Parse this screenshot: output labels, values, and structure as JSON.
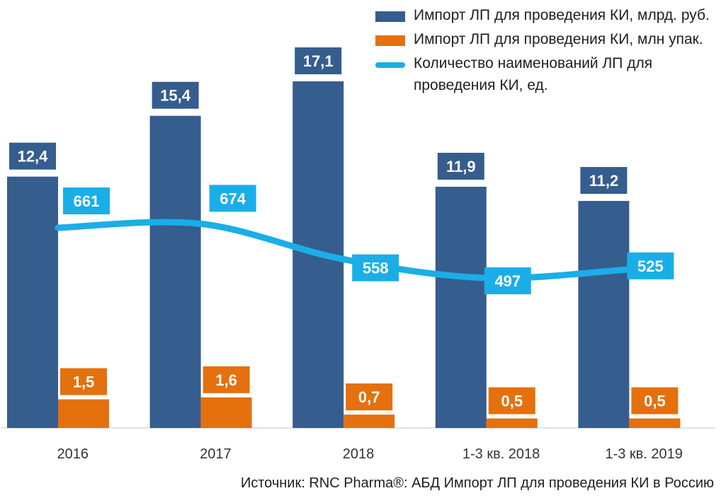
{
  "chart_data": {
    "type": "bar",
    "categories": [
      "2016",
      "2017",
      "2018",
      "1-3 кв. 2018",
      "1-3 кв. 2019"
    ],
    "series": [
      {
        "name": "Импорт ЛП для проведения КИ, млрд. руб.",
        "type": "bar",
        "color": "#355d8e",
        "values": [
          12.4,
          15.4,
          17.1,
          11.9,
          11.2
        ],
        "labels": [
          "12,4",
          "15,4",
          "17,1",
          "11,9",
          "11,2"
        ]
      },
      {
        "name": "Импорт ЛП для проведения КИ, млн упак.",
        "type": "bar",
        "color": "#e5700e",
        "values": [
          1.5,
          1.6,
          0.7,
          0.5,
          0.5
        ],
        "labels": [
          "1,5",
          "1,6",
          "0,7",
          "0,5",
          "0,5"
        ]
      },
      {
        "name": "Количество наименований ЛП для проведения КИ, ед.",
        "type": "line",
        "color": "#1aaee8",
        "values": [
          661,
          674,
          558,
          497,
          525
        ],
        "labels": [
          "661",
          "674",
          "558",
          "497",
          "525"
        ]
      }
    ],
    "title": "",
    "xlabel": "",
    "ylabel": "",
    "grid": false,
    "legend_position": "top-right"
  },
  "source": "Источник: RNC Pharma®: АБД Импорт ЛП для проведения КИ в Россию"
}
